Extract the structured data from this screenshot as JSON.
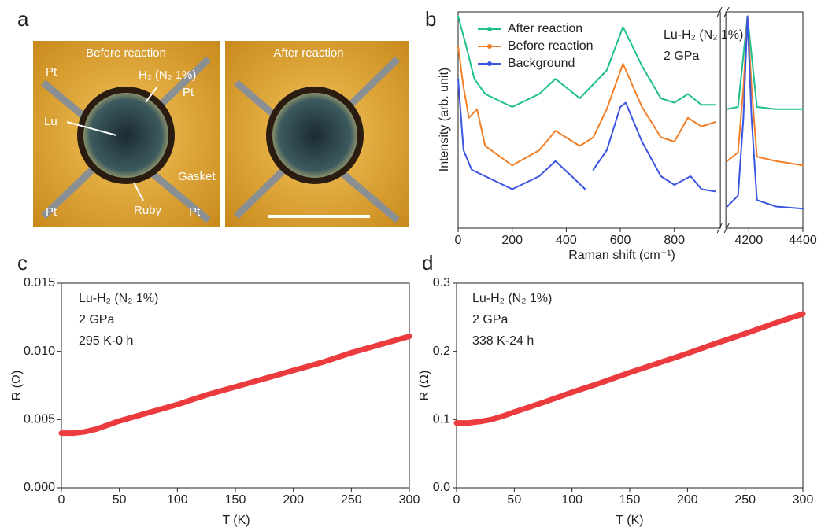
{
  "image_panel": {
    "label": "a",
    "titles": [
      "Before reaction",
      "After reaction"
    ],
    "annotations": [
      "Pt",
      "H₂ (N₂ 1%)",
      "Pt",
      "Lu",
      "Gasket",
      "Pt",
      "Ruby",
      "Pt"
    ]
  },
  "chart_data": [
    {
      "type": "line",
      "label": "b",
      "x_label": "Raman shift (cm⁻¹)",
      "y_label": "Intensity (arb. unit)",
      "xlim_segments": [
        [
          0,
          970
        ],
        [
          4115,
          4400
        ]
      ],
      "ylim": [
        0,
        10
      ],
      "xticks": [
        0,
        200,
        400,
        600,
        800,
        4200,
        4400
      ],
      "legend": "upper left",
      "annotations": [
        "Lu-H₂ (N₂ 1%)",
        "2 GPa"
      ],
      "series": [
        {
          "name": "After reaction",
          "color": "#1dbf8c",
          "x": [
            0,
            30,
            60,
            100,
            200,
            300,
            360,
            450,
            550,
            610,
            680,
            750,
            800,
            850,
            900,
            950,
            null,
            4120,
            4160,
            4180,
            4195,
            4210,
            4230,
            4300,
            4400
          ],
          "values": [
            9.8,
            8.4,
            6.9,
            6.2,
            5.6,
            6.2,
            6.9,
            6.0,
            7.3,
            9.3,
            7.5,
            6.0,
            5.8,
            6.2,
            5.7,
            5.7,
            null,
            5.5,
            5.6,
            8.0,
            9.8,
            8.0,
            5.6,
            5.5,
            5.5
          ]
        },
        {
          "name": "Before reaction",
          "color": "#f07f27",
          "x": [
            0,
            20,
            40,
            70,
            100,
            200,
            300,
            360,
            450,
            500,
            550,
            610,
            680,
            750,
            800,
            850,
            900,
            950,
            null,
            4120,
            4160,
            4180,
            4195,
            4210,
            4230,
            4300,
            4400
          ],
          "values": [
            8.4,
            6.5,
            5.1,
            5.5,
            3.8,
            2.9,
            3.6,
            4.5,
            3.8,
            4.2,
            5.5,
            7.6,
            5.6,
            4.2,
            4.0,
            5.1,
            4.7,
            4.9,
            null,
            3.1,
            3.5,
            6.5,
            9.8,
            6.5,
            3.3,
            3.1,
            2.9
          ]
        },
        {
          "name": "Background",
          "color": "#3a55e0",
          "x": [
            0,
            20,
            50,
            100,
            200,
            300,
            360,
            420,
            470,
            null,
            500,
            550,
            600,
            620,
            680,
            750,
            800,
            860,
            900,
            950,
            null,
            4120,
            4160,
            4180,
            4195,
            4210,
            4230,
            4300,
            4400
          ],
          "values": [
            6.9,
            3.6,
            2.7,
            2.4,
            1.8,
            2.4,
            3.1,
            2.4,
            1.8,
            null,
            2.7,
            3.6,
            5.6,
            5.8,
            4.0,
            2.4,
            2.0,
            2.4,
            1.8,
            1.7,
            null,
            1.0,
            1.5,
            5.1,
            9.8,
            5.1,
            1.3,
            1.0,
            0.9
          ]
        }
      ]
    },
    {
      "type": "line",
      "label": "c",
      "x_label": "T (K)",
      "y_label": "R (Ω)",
      "xlim": [
        0,
        300
      ],
      "ylim": [
        0,
        0.015
      ],
      "xticks": [
        0,
        50,
        100,
        150,
        200,
        250,
        300
      ],
      "yticks": [
        {
          "value": 0,
          "label": "0.000"
        },
        {
          "value": 0.005,
          "label": "0.005"
        },
        {
          "value": 0.01,
          "label": "0.010"
        },
        {
          "value": 0.015,
          "label": "0.015"
        }
      ],
      "annotations": [
        "Lu-H₂ (N₂ 1%)",
        "2 GPa",
        "295 K-0 h"
      ],
      "color": "#ec3b3f",
      "x": [
        0,
        10,
        20,
        30,
        40,
        50,
        75,
        100,
        125,
        150,
        175,
        200,
        225,
        250,
        275,
        300
      ],
      "values": [
        0.004,
        0.004,
        0.0041,
        0.0043,
        0.0046,
        0.0049,
        0.0055,
        0.0061,
        0.0068,
        0.0074,
        0.008,
        0.0086,
        0.0092,
        0.0099,
        0.0105,
        0.0111
      ]
    },
    {
      "type": "line",
      "label": "d",
      "x_label": "T (K)",
      "y_label": "R (Ω)",
      "xlim": [
        0,
        300
      ],
      "ylim": [
        0,
        0.3
      ],
      "xticks": [
        0,
        50,
        100,
        150,
        200,
        250,
        300
      ],
      "yticks": [
        {
          "value": 0,
          "label": "0.0"
        },
        0.1,
        0.2,
        0.3
      ],
      "annotations": [
        "Lu-H₂ (N₂ 1%)",
        "2 GPa",
        "338 K-24 h"
      ],
      "color": "#ec3b3f",
      "x": [
        0,
        10,
        20,
        30,
        40,
        50,
        75,
        100,
        125,
        150,
        175,
        200,
        225,
        250,
        275,
        300
      ],
      "values": [
        0.095,
        0.095,
        0.097,
        0.1,
        0.105,
        0.111,
        0.125,
        0.14,
        0.154,
        0.169,
        0.183,
        0.197,
        0.212,
        0.226,
        0.241,
        0.255
      ]
    }
  ]
}
